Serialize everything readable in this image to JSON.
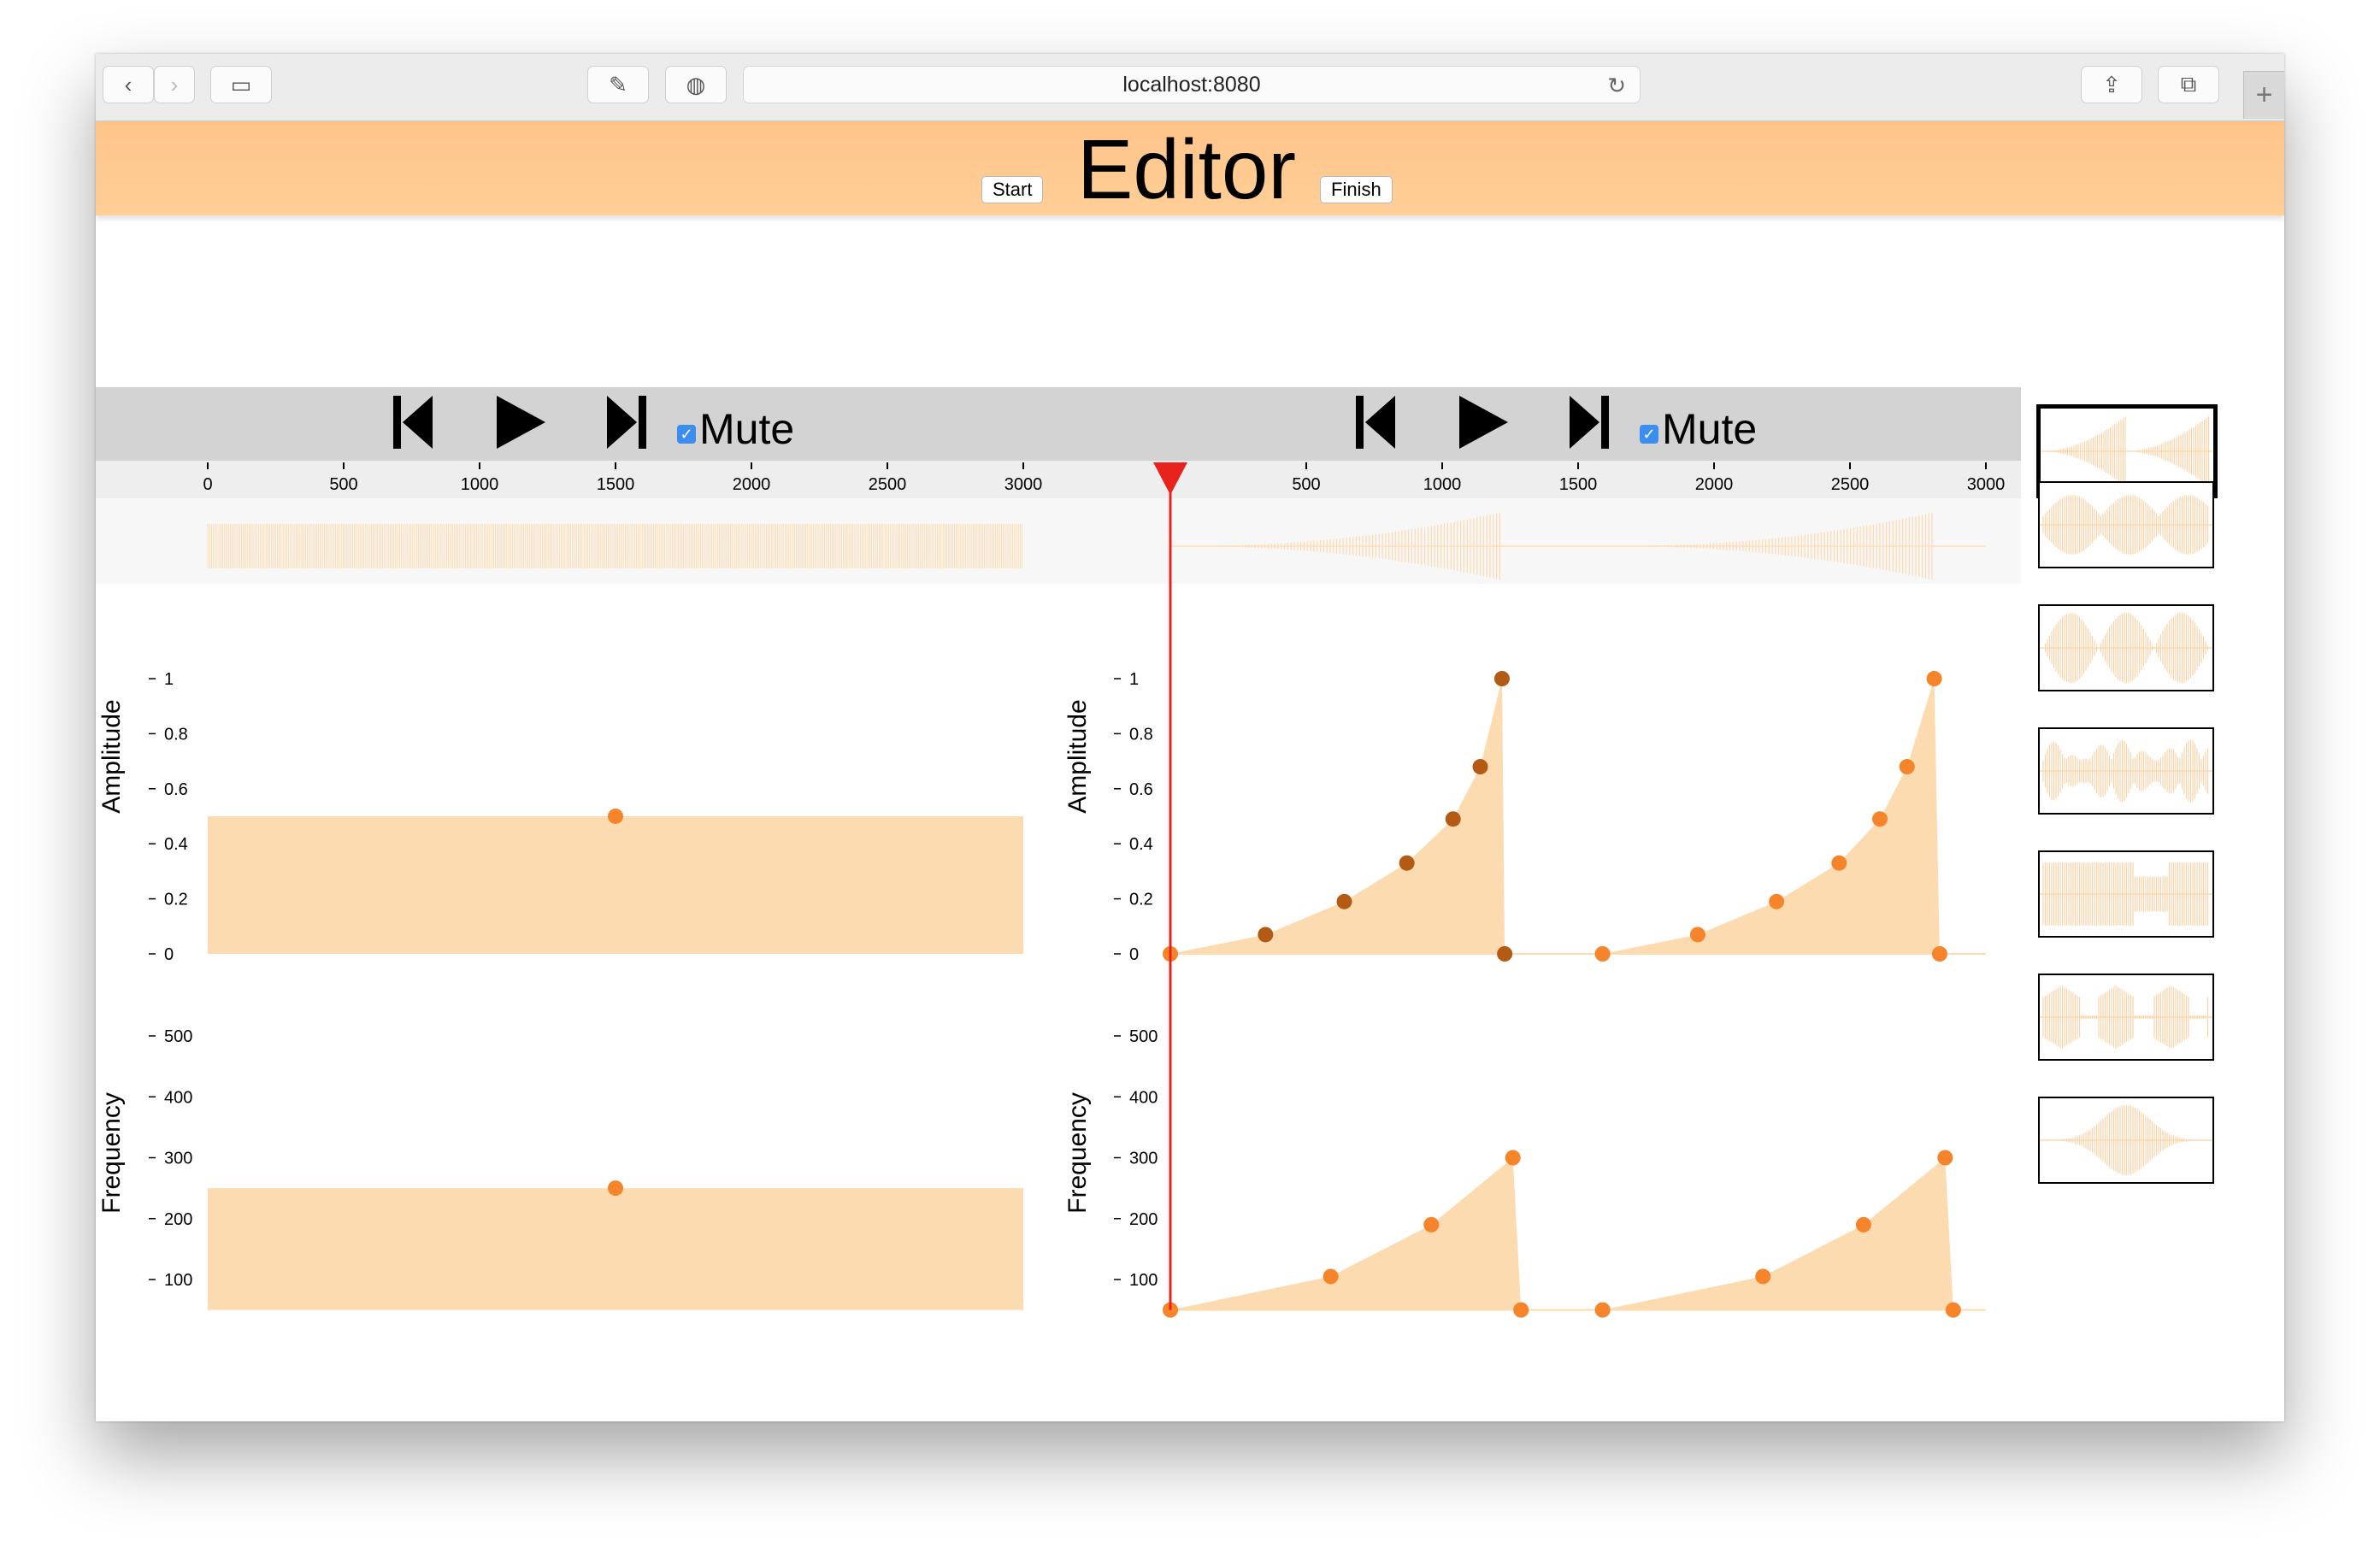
{
  "browser": {
    "url": "localhost:8080"
  },
  "header": {
    "title": "Editor",
    "start_label": "Start",
    "finish_label": "Finish"
  },
  "players": [
    {
      "mute_label": "Mute",
      "mute_checked": true
    },
    {
      "mute_label": "Mute",
      "mute_checked": true
    }
  ],
  "timeline_ticks": [
    "0",
    "500",
    "1000",
    "1500",
    "2000",
    "2500",
    "3000"
  ],
  "timeline_ticks_right": [
    "500",
    "1000",
    "1500",
    "2000",
    "2500",
    "3000"
  ],
  "charts": {
    "amplitude_label": "Amplitude",
    "frequency_label": "Frequency",
    "amplitude_ticks": [
      "1",
      "0.8",
      "0.6",
      "0.4",
      "0.2",
      "0"
    ],
    "frequency_ticks": [
      "500",
      "400",
      "300",
      "200",
      "100"
    ]
  },
  "colors": {
    "accent": "#ffc48a",
    "fill": "#fddbb0",
    "point": "#f5842b",
    "point_dark": "#b35a14",
    "playhead": "#e8231d",
    "bar_gray": "#d3d3d3"
  },
  "chart_data": [
    {
      "type": "area",
      "name": "left-amplitude",
      "x": [
        0,
        3000
      ],
      "y": [
        0.5,
        0.5
      ],
      "points": [
        [
          1500,
          0.5
        ]
      ],
      "ylim": [
        0,
        1
      ],
      "xlim": [
        0,
        3000
      ]
    },
    {
      "type": "area",
      "name": "left-frequency",
      "x": [
        0,
        3000
      ],
      "y": [
        250,
        250
      ],
      "points": [
        [
          1500,
          250
        ]
      ],
      "ylim": [
        50,
        550
      ],
      "xlim": [
        0,
        3000
      ]
    },
    {
      "type": "area",
      "name": "right-amplitude",
      "xlim": [
        0,
        3000
      ],
      "ylim": [
        0,
        1
      ],
      "segments": [
        {
          "x": [
            0,
            350,
            640,
            870,
            1040,
            1140,
            1220,
            1230
          ],
          "y": [
            0,
            0.07,
            0.19,
            0.33,
            0.49,
            0.68,
            1,
            0
          ]
        },
        {
          "x": [
            1590,
            1940,
            2230,
            2460,
            2610,
            2710,
            2810,
            2830
          ],
          "y": [
            0,
            0.07,
            0.19,
            0.33,
            0.49,
            0.68,
            1,
            0
          ]
        }
      ]
    },
    {
      "type": "area",
      "name": "right-frequency",
      "xlim": [
        0,
        3000
      ],
      "ylim": [
        50,
        550
      ],
      "segments": [
        {
          "x": [
            0,
            590,
            960,
            1260,
            1290
          ],
          "y": [
            50,
            105,
            190,
            300,
            50
          ]
        },
        {
          "x": [
            1590,
            2180,
            2550,
            2850,
            2880
          ],
          "y": [
            50,
            105,
            190,
            300,
            50
          ]
        }
      ]
    }
  ]
}
